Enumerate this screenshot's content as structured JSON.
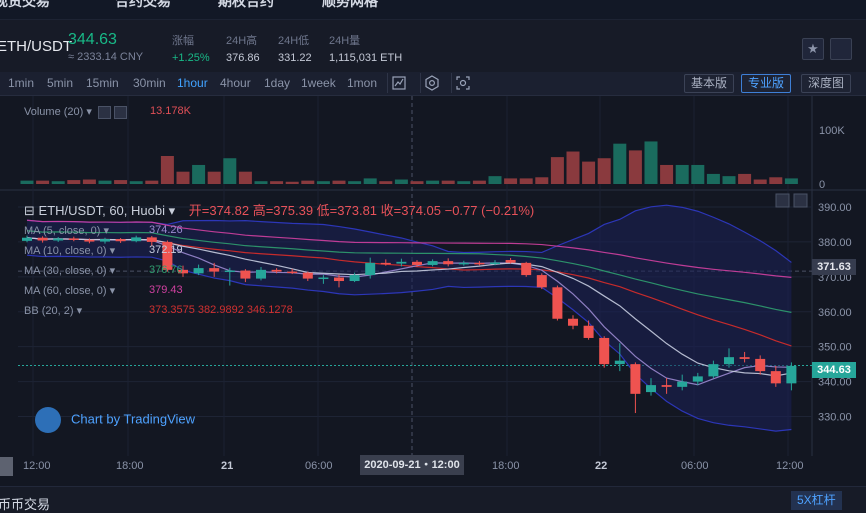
{
  "top_nav": [
    "现货交易",
    "合约交易",
    "期权合约",
    "顺势网格"
  ],
  "ticker": {
    "pair": "ETH/USDT",
    "last_price": "344.63",
    "cny": "≈ 2333.14 CNY",
    "stats": [
      {
        "label": "涨幅",
        "value": "+1.25%",
        "up": true
      },
      {
        "label": "24H高",
        "value": "376.86"
      },
      {
        "label": "24H低",
        "value": "331.22"
      },
      {
        "label": "24H量",
        "value": "1,115,031 ETH"
      }
    ]
  },
  "toolbar": {
    "intervals": [
      "1min",
      "5min",
      "15min",
      "30min",
      "1hour",
      "4hour",
      "1day",
      "1week",
      "1mon"
    ],
    "active_interval": "1hour",
    "views": [
      "基本版",
      "专业版",
      "深度图"
    ],
    "active_view": "专业版"
  },
  "volume_panel": {
    "legend": "Volume (20)",
    "value": "13.178K",
    "axis": [
      "100K",
      "0"
    ]
  },
  "main_panel": {
    "title": "ETH/USDT, 60, Huobi",
    "ohlc": "开=374.82  高=375.39  低=373.81  收=374.05  −0.77 (−0.21%)",
    "indicators": [
      {
        "label": "MA (5, close, 0)",
        "value": "374.26",
        "color": "#9b8ad0"
      },
      {
        "label": "MA (10, close, 0)",
        "value": "372.19",
        "color": "#c6cde0"
      },
      {
        "label": "MA (30, close, 0)",
        "value": "376.76",
        "color": "#2f9e6f"
      },
      {
        "label": "MA (60, close, 0)",
        "value": "379.43",
        "color": "#d040a0"
      },
      {
        "label": "BB (20, 2)",
        "value": "373.3575  382.9892  346.1278",
        "color": "#d03030"
      }
    ],
    "price_axis": [
      "390.00",
      "380.00",
      "370.00",
      "360.00",
      "350.00",
      "340.00",
      "330.00"
    ],
    "crosshair_price": "371.63",
    "last_price_tag": "344.63",
    "watermark": "Chart by TradingView"
  },
  "time_axis": {
    "labels": [
      "12:00",
      "18:00",
      "21",
      "06:00",
      "18:00",
      "22",
      "06:00",
      "12:00"
    ],
    "crosshair": "2020-09-21・12:00"
  },
  "bottom": {
    "tab": "币币交易",
    "leverage": "5X杠杆"
  },
  "colors": {
    "up": "#26a69a",
    "down": "#ef5350",
    "accent": "#41a2ff"
  },
  "chart_data": {
    "type": "candlestick",
    "title": "ETH/USDT, 60, Huobi",
    "ylim": [
      325,
      392
    ],
    "candles": [
      {
        "o": 380.3,
        "c": 381.2,
        "h": 381.8,
        "l": 379.9
      },
      {
        "o": 381.2,
        "c": 380.4,
        "h": 381.6,
        "l": 379.8
      },
      {
        "o": 380.4,
        "c": 381.0,
        "h": 381.4,
        "l": 380.0
      },
      {
        "o": 381.0,
        "c": 380.6,
        "h": 381.5,
        "l": 380.2
      },
      {
        "o": 380.6,
        "c": 380.1,
        "h": 381.0,
        "l": 379.6
      },
      {
        "o": 380.1,
        "c": 380.8,
        "h": 381.2,
        "l": 379.5
      },
      {
        "o": 380.8,
        "c": 380.2,
        "h": 381.1,
        "l": 379.7
      },
      {
        "o": 380.2,
        "c": 381.3,
        "h": 381.8,
        "l": 379.9
      },
      {
        "o": 381.3,
        "c": 380.0,
        "h": 381.7,
        "l": 378.8
      },
      {
        "o": 380.0,
        "c": 372.0,
        "h": 380.4,
        "l": 371.5
      },
      {
        "o": 372.0,
        "c": 371.0,
        "h": 373.2,
        "l": 370.0
      },
      {
        "o": 371.0,
        "c": 372.5,
        "h": 373.5,
        "l": 370.5
      },
      {
        "o": 372.5,
        "c": 371.5,
        "h": 374.0,
        "l": 370.0
      },
      {
        "o": 371.5,
        "c": 371.8,
        "h": 372.6,
        "l": 367.5
      },
      {
        "o": 371.8,
        "c": 369.5,
        "h": 372.2,
        "l": 368.5
      },
      {
        "o": 369.5,
        "c": 372.0,
        "h": 372.8,
        "l": 369.0
      },
      {
        "o": 372.0,
        "c": 371.5,
        "h": 372.5,
        "l": 371.0
      },
      {
        "o": 371.5,
        "c": 371.2,
        "h": 372.3,
        "l": 370.8
      },
      {
        "o": 371.2,
        "c": 369.5,
        "h": 371.5,
        "l": 368.8
      },
      {
        "o": 369.5,
        "c": 369.8,
        "h": 370.5,
        "l": 368.0
      },
      {
        "o": 369.8,
        "c": 368.8,
        "h": 370.6,
        "l": 367.0
      },
      {
        "o": 368.8,
        "c": 370.5,
        "h": 371.2,
        "l": 368.5
      },
      {
        "o": 370.5,
        "c": 374.0,
        "h": 375.5,
        "l": 369.5
      },
      {
        "o": 374.0,
        "c": 373.8,
        "h": 375.0,
        "l": 373.2
      },
      {
        "o": 373.8,
        "c": 374.3,
        "h": 375.2,
        "l": 373.0
      },
      {
        "o": 374.3,
        "c": 373.4,
        "h": 374.8,
        "l": 372.8
      },
      {
        "o": 373.4,
        "c": 374.5,
        "h": 375.0,
        "l": 373.0
      },
      {
        "o": 374.5,
        "c": 373.6,
        "h": 375.3,
        "l": 373.0
      },
      {
        "o": 373.6,
        "c": 374.0,
        "h": 374.6,
        "l": 373.2
      },
      {
        "o": 374.0,
        "c": 373.8,
        "h": 374.5,
        "l": 373.3
      },
      {
        "o": 373.8,
        "c": 374.1,
        "h": 374.8,
        "l": 373.3
      },
      {
        "o": 374.82,
        "c": 374.05,
        "h": 375.39,
        "l": 373.81
      },
      {
        "o": 374.0,
        "c": 370.5,
        "h": 374.3,
        "l": 370.0
      },
      {
        "o": 370.5,
        "c": 367.0,
        "h": 371.0,
        "l": 366.5
      },
      {
        "o": 367.0,
        "c": 358.0,
        "h": 367.5,
        "l": 357.5
      },
      {
        "o": 358.0,
        "c": 356.0,
        "h": 359.0,
        "l": 355.0
      },
      {
        "o": 356.0,
        "c": 352.5,
        "h": 357.5,
        "l": 352.0
      },
      {
        "o": 352.5,
        "c": 345.0,
        "h": 353.0,
        "l": 344.0
      },
      {
        "o": 345.0,
        "c": 346.0,
        "h": 351.0,
        "l": 343.0
      },
      {
        "o": 345.0,
        "c": 336.5,
        "h": 345.5,
        "l": 331.0
      },
      {
        "o": 337.0,
        "c": 339.0,
        "h": 341.0,
        "l": 336.0
      },
      {
        "o": 339.0,
        "c": 338.5,
        "h": 341.0,
        "l": 336.5
      },
      {
        "o": 338.5,
        "c": 340.0,
        "h": 342.0,
        "l": 337.5
      },
      {
        "o": 340.0,
        "c": 341.5,
        "h": 342.5,
        "l": 339.0
      },
      {
        "o": 341.5,
        "c": 345.0,
        "h": 346.0,
        "l": 341.0
      },
      {
        "o": 345.0,
        "c": 347.0,
        "h": 349.5,
        "l": 344.0
      },
      {
        "o": 347.0,
        "c": 346.5,
        "h": 348.5,
        "l": 345.5
      },
      {
        "o": 346.5,
        "c": 343.0,
        "h": 347.5,
        "l": 342.0
      },
      {
        "o": 343.0,
        "c": 339.5,
        "h": 344.5,
        "l": 338.5
      },
      {
        "o": 339.5,
        "c": 344.5,
        "h": 345.5,
        "l": 337.5
      }
    ],
    "volume": [
      6,
      6,
      5,
      7,
      8,
      6,
      7,
      5,
      6,
      50,
      22,
      34,
      22,
      46,
      22,
      5,
      5,
      4,
      6,
      5,
      6,
      5,
      10,
      5,
      8,
      5,
      6,
      6,
      5,
      6,
      14,
      10,
      10,
      12,
      48,
      58,
      40,
      46,
      72,
      60,
      76,
      34,
      34,
      34,
      18,
      14,
      18,
      8,
      12,
      10
    ]
  }
}
